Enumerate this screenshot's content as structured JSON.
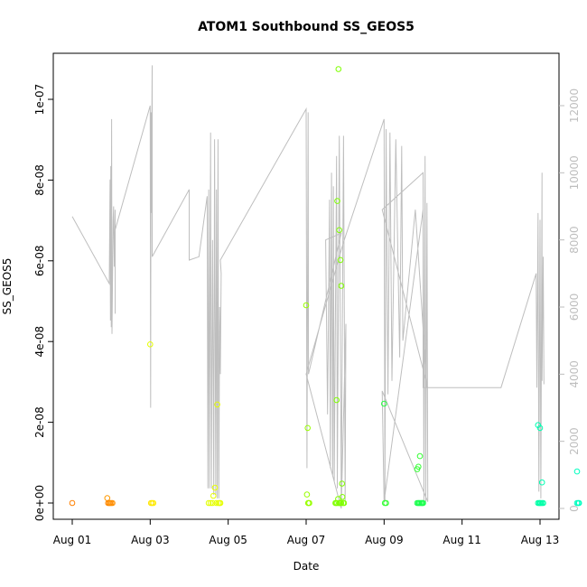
{
  "chart_data": {
    "type": "scatter",
    "title": "ATOM1 Southbound SS_GEOS5",
    "xlabel": "Date",
    "ylabel": "SS_GEOS5",
    "xlim": [
      -0.1,
      12.1
    ],
    "ylim": [
      -3e-09,
      1.12e-07
    ],
    "y2lim": [
      -350,
      12450
    ],
    "x_ticks": [
      {
        "v": 0,
        "label": "Aug 01"
      },
      {
        "v": 2,
        "label": "Aug 03"
      },
      {
        "v": 4,
        "label": "Aug 05"
      },
      {
        "v": 6,
        "label": "Aug 07"
      },
      {
        "v": 8,
        "label": "Aug 09"
      },
      {
        "v": 10,
        "label": "Aug 11"
      },
      {
        "v": 12,
        "label": "Aug 13"
      }
    ],
    "y_ticks": [
      {
        "v": 0,
        "label": "0e+00"
      },
      {
        "v": 2e-08,
        "label": "2e-08"
      },
      {
        "v": 4e-08,
        "label": "4e-08"
      },
      {
        "v": 6e-08,
        "label": "6e-08"
      },
      {
        "v": 8e-08,
        "label": "8e-08"
      },
      {
        "v": 1e-07,
        "label": "1e-07"
      }
    ],
    "y2_ticks": [
      {
        "v": 0,
        "label": "0"
      },
      {
        "v": 2000,
        "label": "2000"
      },
      {
        "v": 4000,
        "label": "4000"
      },
      {
        "v": 6000,
        "label": "6000"
      },
      {
        "v": 8000,
        "label": "8000"
      },
      {
        "v": 10000,
        "label": "10000"
      },
      {
        "v": 12000,
        "label": "12000"
      }
    ],
    "altitude_line_color": "#bebebe",
    "altitude_path": [
      [
        0.0,
        8700
      ],
      [
        0.95,
        6700
      ],
      [
        0.97,
        9800
      ],
      [
        0.98,
        5600
      ],
      [
        0.99,
        10200
      ],
      [
        1.0,
        5400
      ],
      [
        1.01,
        11600
      ],
      [
        1.02,
        5200
      ],
      [
        1.05,
        8600
      ],
      [
        1.06,
        9000
      ],
      [
        1.08,
        7200
      ],
      [
        1.1,
        8900
      ],
      [
        1.1,
        6300
      ],
      [
        1.1,
        8000
      ],
      [
        1.1,
        5800
      ],
      [
        1.1,
        8300
      ],
      [
        2.0,
        12000
      ],
      [
        2.01,
        3000
      ],
      [
        2.02,
        11800
      ],
      [
        2.03,
        8800
      ],
      [
        2.05,
        13200
      ],
      [
        2.05,
        7500
      ],
      [
        3.0,
        9500
      ],
      [
        3.0,
        7400
      ],
      [
        3.25,
        7500
      ],
      [
        3.46,
        9300
      ],
      [
        3.48,
        600
      ],
      [
        3.5,
        9500
      ],
      [
        3.52,
        600
      ],
      [
        3.55,
        11200
      ],
      [
        3.57,
        600
      ],
      [
        3.6,
        8000
      ],
      [
        3.63,
        400
      ],
      [
        3.65,
        11000
      ],
      [
        3.68,
        400
      ],
      [
        3.7,
        9500
      ],
      [
        3.72,
        300
      ],
      [
        3.74,
        11000
      ],
      [
        3.76,
        300
      ],
      [
        3.78,
        6000
      ],
      [
        3.8,
        4000
      ],
      [
        3.82,
        7000
      ],
      [
        3.8,
        7400
      ],
      [
        6.0,
        11900
      ],
      [
        6.02,
        1200
      ],
      [
        6.05,
        11800
      ],
      [
        6.06,
        4000
      ],
      [
        6.9,
        8200
      ],
      [
        6.5,
        8000
      ],
      [
        6.55,
        2800
      ],
      [
        6.6,
        9200
      ],
      [
        6.62,
        1200
      ],
      [
        6.65,
        10000
      ],
      [
        6.68,
        1000
      ],
      [
        6.7,
        9600
      ],
      [
        6.72,
        800
      ],
      [
        6.78,
        10500
      ],
      [
        6.8,
        600
      ],
      [
        6.85,
        11100
      ],
      [
        6.9,
        300
      ],
      [
        6.96,
        11100
      ],
      [
        7.0,
        200
      ],
      [
        7.02,
        5500
      ],
      [
        6.9,
        0
      ],
      [
        6.0,
        4000
      ],
      [
        6.95,
        7900
      ],
      [
        8.0,
        11600
      ],
      [
        8.02,
        200
      ],
      [
        8.05,
        11300
      ],
      [
        8.1,
        3400
      ],
      [
        8.15,
        11200
      ],
      [
        8.2,
        3800
      ],
      [
        8.3,
        11000
      ],
      [
        8.4,
        4500
      ],
      [
        8.45,
        10800
      ],
      [
        8.48,
        5000
      ],
      [
        8.8,
        8900
      ],
      [
        9.1,
        3600
      ],
      [
        9.12,
        3600
      ],
      [
        7.95,
        8900
      ],
      [
        9.0,
        10000
      ],
      [
        9.02,
        200
      ],
      [
        9.05,
        10500
      ],
      [
        9.07,
        200
      ],
      [
        9.1,
        9100
      ],
      [
        9.12,
        200
      ],
      [
        7.95,
        3500
      ],
      [
        8.0,
        200
      ],
      [
        9.0,
        8900
      ],
      [
        9.0,
        4000
      ],
      [
        9.0,
        3600
      ],
      [
        11.0,
        3600
      ],
      [
        11.9,
        7000
      ],
      [
        11.92,
        3600
      ],
      [
        11.95,
        8800
      ],
      [
        11.97,
        500
      ],
      [
        12.0,
        8600
      ],
      [
        12.02,
        300
      ],
      [
        12.05,
        10000
      ],
      [
        12.05,
        3800
      ],
      [
        12.08,
        7500
      ],
      [
        12.1,
        3700
      ]
    ],
    "points": [
      {
        "x": 0.0,
        "y": 0,
        "c": "#FF8000"
      },
      {
        "x": 0.9,
        "y": 1.2e-09,
        "c": "#FF9900"
      },
      {
        "x": 0.92,
        "y": 0,
        "c": "#FF8800"
      },
      {
        "x": 0.95,
        "y": 0,
        "c": "#FF8800"
      },
      {
        "x": 0.97,
        "y": 0,
        "c": "#FF8C00"
      },
      {
        "x": 1.0,
        "y": 0,
        "c": "#FF9000"
      },
      {
        "x": 1.03,
        "y": 0,
        "c": "#FF9000"
      },
      {
        "x": 2.0,
        "y": 3.93e-08,
        "c": "#E6FF00"
      },
      {
        "x": 2.02,
        "y": 0,
        "c": "#FFE500"
      },
      {
        "x": 2.05,
        "y": 0,
        "c": "#FFE500"
      },
      {
        "x": 2.08,
        "y": 0,
        "c": "#FFEE00"
      },
      {
        "x": 3.5,
        "y": 0,
        "c": "#E0FF00"
      },
      {
        "x": 3.55,
        "y": 0,
        "c": "#E6FF00"
      },
      {
        "x": 3.6,
        "y": 0,
        "c": "#E6FF00"
      },
      {
        "x": 3.62,
        "y": 1.8e-09,
        "c": "#E6FF00"
      },
      {
        "x": 3.66,
        "y": 3.8e-09,
        "c": "#E6FF00"
      },
      {
        "x": 3.7,
        "y": 0,
        "c": "#E6FF00"
      },
      {
        "x": 3.72,
        "y": 2.44e-08,
        "c": "#E6FF00"
      },
      {
        "x": 3.75,
        "y": 0,
        "c": "#E6FF00"
      },
      {
        "x": 3.78,
        "y": 0,
        "c": "#E6FF00"
      },
      {
        "x": 3.8,
        "y": 0,
        "c": "#E6FF00"
      },
      {
        "x": 6.0,
        "y": 4.9e-08,
        "c": "#99FF00"
      },
      {
        "x": 6.02,
        "y": 2.1e-09,
        "c": "#99FF00"
      },
      {
        "x": 6.04,
        "y": 1.86e-08,
        "c": "#99FF00"
      },
      {
        "x": 6.05,
        "y": 0,
        "c": "#99FF00"
      },
      {
        "x": 6.06,
        "y": 0,
        "c": "#99FF00"
      },
      {
        "x": 6.08,
        "y": 0,
        "c": "#99FF00"
      },
      {
        "x": 6.78,
        "y": 2.55e-08,
        "c": "#7FFF00"
      },
      {
        "x": 6.8,
        "y": 7.48e-08,
        "c": "#7FFF00"
      },
      {
        "x": 6.83,
        "y": 1.075e-07,
        "c": "#7FFF00"
      },
      {
        "x": 6.85,
        "y": 6.76e-08,
        "c": "#7FFF00"
      },
      {
        "x": 6.88,
        "y": 6.02e-08,
        "c": "#7FFF00"
      },
      {
        "x": 6.9,
        "y": 5.38e-08,
        "c": "#7FFF00"
      },
      {
        "x": 6.92,
        "y": 4.8e-09,
        "c": "#7FFF00"
      },
      {
        "x": 6.93,
        "y": 1.5e-09,
        "c": "#7FFF00"
      },
      {
        "x": 6.75,
        "y": 0,
        "c": "#80FF00"
      },
      {
        "x": 6.77,
        "y": 0,
        "c": "#80FF00"
      },
      {
        "x": 6.8,
        "y": 0,
        "c": "#80FF00"
      },
      {
        "x": 6.82,
        "y": 1e-09,
        "c": "#80FF00"
      },
      {
        "x": 6.84,
        "y": 0,
        "c": "#80FF00"
      },
      {
        "x": 6.86,
        "y": 0,
        "c": "#80FF00"
      },
      {
        "x": 6.88,
        "y": 0,
        "c": "#80FF00"
      },
      {
        "x": 6.9,
        "y": 0,
        "c": "#80FF00"
      },
      {
        "x": 6.95,
        "y": 0,
        "c": "#80FF00"
      },
      {
        "x": 6.97,
        "y": 0,
        "c": "#80FF00"
      },
      {
        "x": 8.0,
        "y": 2.46e-08,
        "c": "#26FF40"
      },
      {
        "x": 8.02,
        "y": 0,
        "c": "#33FF33"
      },
      {
        "x": 8.05,
        "y": 0,
        "c": "#33FF33"
      },
      {
        "x": 8.85,
        "y": 8.4e-09,
        "c": "#33FF33"
      },
      {
        "x": 8.88,
        "y": 9e-09,
        "c": "#33FF33"
      },
      {
        "x": 8.92,
        "y": 1.16e-08,
        "c": "#33FF33"
      },
      {
        "x": 8.85,
        "y": 0,
        "c": "#1AFF4D"
      },
      {
        "x": 8.88,
        "y": 0,
        "c": "#1AFF4D"
      },
      {
        "x": 8.9,
        "y": 0,
        "c": "#1AFF4D"
      },
      {
        "x": 8.93,
        "y": 0,
        "c": "#1AFF4D"
      },
      {
        "x": 8.96,
        "y": 0,
        "c": "#1AFF4D"
      },
      {
        "x": 8.98,
        "y": 0,
        "c": "#1AFF4D"
      },
      {
        "x": 9.0,
        "y": 0,
        "c": "#1AFF4D"
      },
      {
        "x": 11.95,
        "y": 1.93e-08,
        "c": "#00FFB2"
      },
      {
        "x": 12.0,
        "y": 1.86e-08,
        "c": "#00FFB2"
      },
      {
        "x": 12.05,
        "y": 5.1e-09,
        "c": "#00FFB2"
      },
      {
        "x": 11.95,
        "y": 0,
        "c": "#00FFA8"
      },
      {
        "x": 11.98,
        "y": 0,
        "c": "#00FFA8"
      },
      {
        "x": 12.0,
        "y": 0,
        "c": "#00FFA8"
      },
      {
        "x": 12.02,
        "y": 0,
        "c": "#00FFA8"
      },
      {
        "x": 12.05,
        "y": 0,
        "c": "#00FFA8"
      },
      {
        "x": 12.08,
        "y": 0,
        "c": "#00FFA8"
      },
      {
        "x": 12.95,
        "y": 7.8e-09,
        "c": "#00FFC0"
      },
      {
        "x": 12.95,
        "y": 0,
        "c": "#00FFC0"
      },
      {
        "x": 12.98,
        "y": 0,
        "c": "#00FFC0"
      },
      {
        "x": 13.0,
        "y": 0,
        "c": "#00FFC0"
      }
    ]
  }
}
